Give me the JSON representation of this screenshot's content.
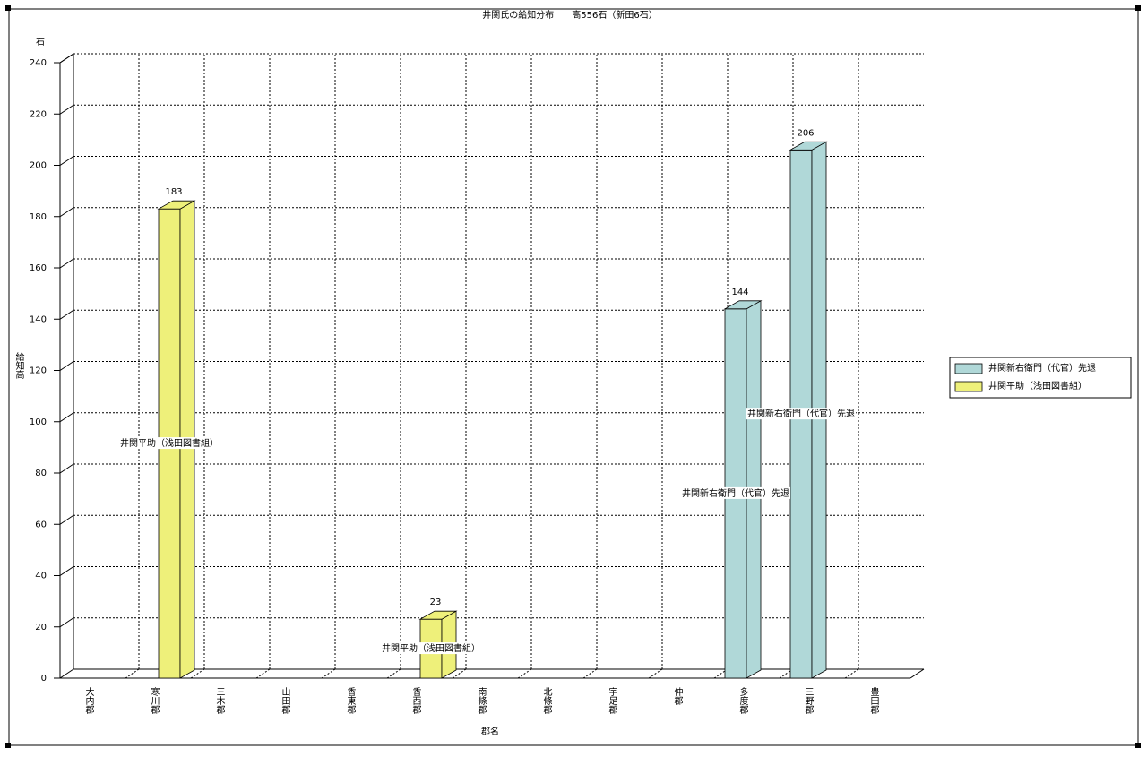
{
  "chart_data": {
    "type": "bar3d",
    "title": "井関氏の給知分布　　高556石（新田6石）",
    "y_unit": "石",
    "y_label": "給知高",
    "x_label": "郡名",
    "categories": [
      "大内郡",
      "寒川郡",
      "三木郡",
      "山田郡",
      "香東郡",
      "香西郡",
      "南條郡",
      "北條郡",
      "宇足郡",
      "仲郡",
      "多度郡",
      "三野郡",
      "豊田郡"
    ],
    "series": [
      {
        "name": "井関新右衛門（代官）先退",
        "color": "#b0d8d8",
        "values": [
          null,
          null,
          null,
          null,
          null,
          null,
          null,
          null,
          null,
          null,
          144,
          206,
          null
        ]
      },
      {
        "name": "井関平助（浅田図書組）",
        "color": "#eef07a",
        "values": [
          null,
          183,
          null,
          null,
          null,
          23,
          null,
          null,
          null,
          null,
          null,
          null,
          null
        ]
      }
    ],
    "ylim": [
      0,
      240
    ],
    "yticks": [
      0,
      20,
      40,
      60,
      80,
      100,
      120,
      140,
      160,
      180,
      200,
      220,
      240
    ],
    "grid": true,
    "legend": "right"
  }
}
